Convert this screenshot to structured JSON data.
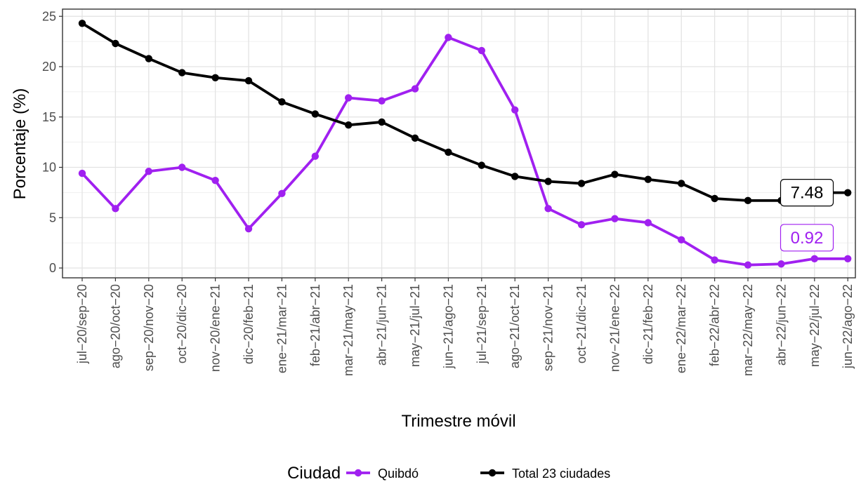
{
  "chart_data": {
    "type": "line",
    "xlabel": "Trimestre móvil",
    "ylabel": "Porcentaje (%)",
    "ylim": [
      0,
      25
    ],
    "yticks": [
      0,
      5,
      10,
      15,
      20,
      25
    ],
    "grid": true,
    "legend_position": "bottom",
    "legend_title": "Ciudad",
    "categories": [
      "jul−20/sep−20",
      "ago−20/oct−20",
      "sep−20/nov−20",
      "oct−20/dic−20",
      "nov−20/ene−21",
      "dic−20/feb−21",
      "ene−21/mar−21",
      "feb−21/abr−21",
      "mar−21/may−21",
      "abr−21/jun−21",
      "may−21/jul−21",
      "jun−21/ago−21",
      "jul−21/sep−21",
      "ago−21/oct−21",
      "sep−21/nov−21",
      "oct−21/dic−21",
      "nov−21/ene−22",
      "dic−21/feb−22",
      "ene−22/mar−22",
      "feb−22/abr−22",
      "mar−22/may−22",
      "abr−22/jun−22",
      "may−22/jul−22",
      "jun−22/ago−22"
    ],
    "series": [
      {
        "name": "Quibdó",
        "color": "#a020f0",
        "values": [
          9.4,
          5.9,
          9.6,
          10.0,
          8.7,
          3.9,
          7.4,
          11.1,
          16.9,
          16.6,
          17.8,
          22.9,
          21.6,
          15.7,
          5.9,
          4.3,
          4.9,
          4.5,
          2.8,
          0.8,
          0.3,
          0.4,
          0.92,
          0.92
        ],
        "end_label": "0.92"
      },
      {
        "name": "Total 23 ciudades",
        "color": "#000000",
        "values": [
          24.3,
          22.3,
          20.8,
          19.4,
          18.9,
          18.6,
          16.5,
          15.3,
          14.2,
          14.5,
          12.9,
          11.5,
          10.2,
          9.1,
          8.6,
          8.4,
          9.3,
          8.8,
          8.4,
          6.9,
          6.7,
          6.7,
          7.48,
          7.48
        ],
        "end_label": "7.48"
      }
    ]
  }
}
